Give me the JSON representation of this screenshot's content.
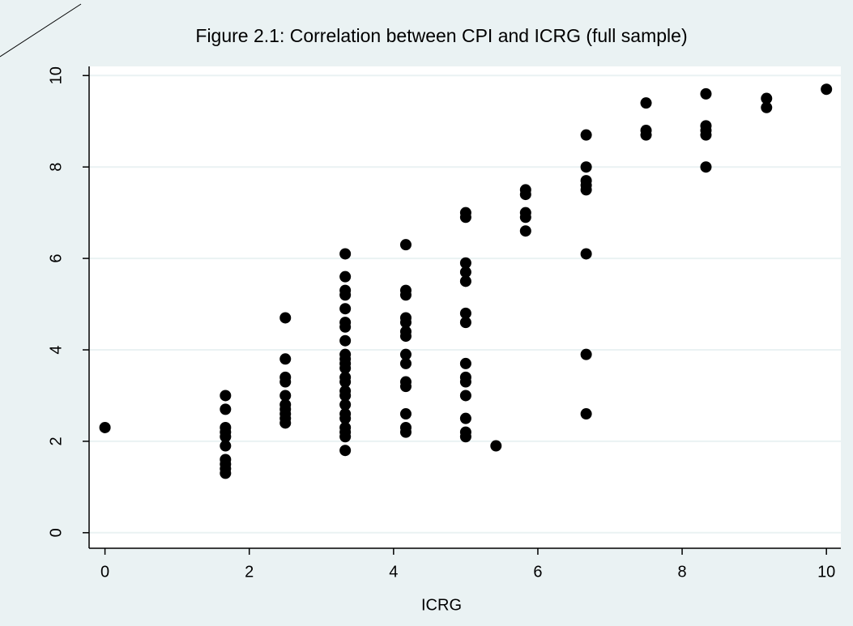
{
  "chart_data": {
    "type": "scatter",
    "title": "Figure 2.1: Correlation between CPI and ICRG (full sample)",
    "x_label": "ICRG",
    "color": "#000000",
    "grid": true,
    "xlim": [
      -0.22,
      10.2
    ],
    "ylim": [
      -0.34,
      10.2
    ],
    "xticks": [
      0,
      2,
      4,
      6,
      8,
      10
    ],
    "yticks": [
      0,
      2,
      4,
      6,
      8,
      10
    ],
    "x": [
      0,
      1.67,
      1.67,
      1.67,
      1.67,
      1.67,
      1.67,
      1.67,
      1.67,
      1.67,
      1.67,
      2.5,
      2.5,
      2.5,
      2.5,
      2.5,
      2.5,
      2.5,
      2.5,
      2.5,
      2.5,
      3.33,
      3.33,
      3.33,
      3.33,
      3.33,
      3.33,
      3.33,
      3.33,
      3.33,
      3.33,
      3.33,
      3.33,
      3.33,
      3.33,
      3.33,
      3.33,
      3.33,
      3.33,
      3.33,
      3.33,
      3.33,
      3.33,
      3.33,
      4.17,
      4.17,
      4.17,
      4.17,
      4.17,
      4.17,
      4.17,
      4.17,
      4.17,
      4.17,
      4.17,
      4.17,
      4.17,
      4.17,
      5,
      5,
      5,
      5,
      5,
      5,
      5,
      5,
      5,
      5,
      5,
      5,
      5,
      5,
      5.42,
      5.83,
      5.83,
      5.83,
      5.83,
      5.83,
      6.67,
      6.67,
      6.67,
      6.67,
      6.67,
      6.67,
      6.67,
      6.67,
      7.5,
      7.5,
      7.5,
      8.33,
      8.33,
      8.33,
      8.33,
      8.33,
      9.17,
      9.17,
      10
    ],
    "values": [
      2.3,
      3.0,
      2.7,
      2.3,
      2.2,
      2.1,
      1.9,
      1.6,
      1.5,
      1.4,
      1.3,
      4.7,
      3.8,
      3.4,
      3.3,
      3.0,
      2.8,
      2.7,
      2.6,
      2.5,
      2.4,
      6.1,
      5.6,
      5.3,
      5.2,
      4.9,
      4.6,
      4.5,
      4.2,
      3.9,
      3.8,
      3.7,
      3.6,
      3.4,
      3.3,
      3.1,
      3.0,
      2.8,
      2.6,
      2.5,
      2.3,
      2.2,
      2.1,
      1.8,
      6.3,
      5.3,
      5.2,
      4.7,
      4.6,
      4.4,
      4.3,
      3.9,
      3.7,
      3.3,
      3.2,
      2.6,
      2.3,
      2.2,
      7.0,
      6.9,
      5.9,
      5.7,
      5.5,
      4.8,
      4.6,
      3.7,
      3.4,
      3.3,
      3.0,
      2.5,
      2.2,
      2.1,
      1.9,
      7.5,
      7.4,
      7.0,
      6.9,
      6.6,
      8.7,
      8.0,
      7.7,
      7.6,
      7.5,
      6.1,
      3.9,
      2.6,
      9.4,
      8.8,
      8.7,
      9.6,
      8.9,
      8.8,
      8.7,
      8.0,
      9.5,
      9.3,
      9.7
    ]
  }
}
